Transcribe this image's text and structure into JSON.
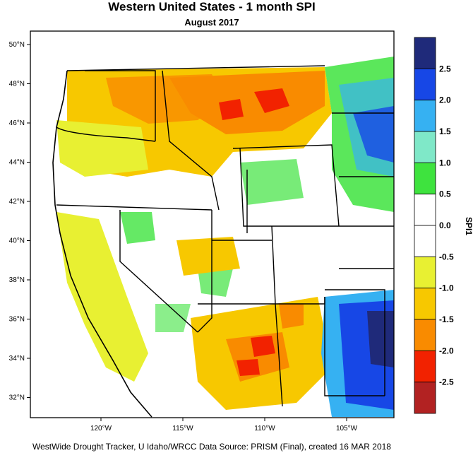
{
  "title": "Western United States - 1 month SPI",
  "subtitle": "August 2017",
  "credit": "WestWide Drought Tracker, U Idaho/WRCC Data Source: PRISM (Final), created 16 MAR 2018",
  "lat_labels": [
    "50°N",
    "48°N",
    "46°N",
    "44°N",
    "42°N",
    "40°N",
    "38°N",
    "36°N",
    "34°N",
    "32°N"
  ],
  "lon_labels": [
    "120°W",
    "115°W",
    "110°W",
    "105°W"
  ],
  "colorbar": {
    "title": "SPI1",
    "labels": [
      "2.5",
      "2.0",
      "1.5",
      "1.0",
      "0.5",
      "0.0",
      "-0.5",
      "-1.0",
      "-1.5",
      "-2.0",
      "-2.5"
    ],
    "colors": [
      "#1f2a7a",
      "#1747e6",
      "#36b1f2",
      "#7fe8c8",
      "#3ee33e",
      "#ffffff",
      "#ffffff",
      "#e8f032",
      "#f7c800",
      "#f98b00",
      "#f22200",
      "#b22222"
    ]
  },
  "colors": {
    "dry_strong": "#f98b00",
    "dry_moderate": "#f7c800",
    "dry_mild": "#e8f032",
    "wet_mild": "#3ee33e",
    "wet_strong": "#1747e6"
  }
}
